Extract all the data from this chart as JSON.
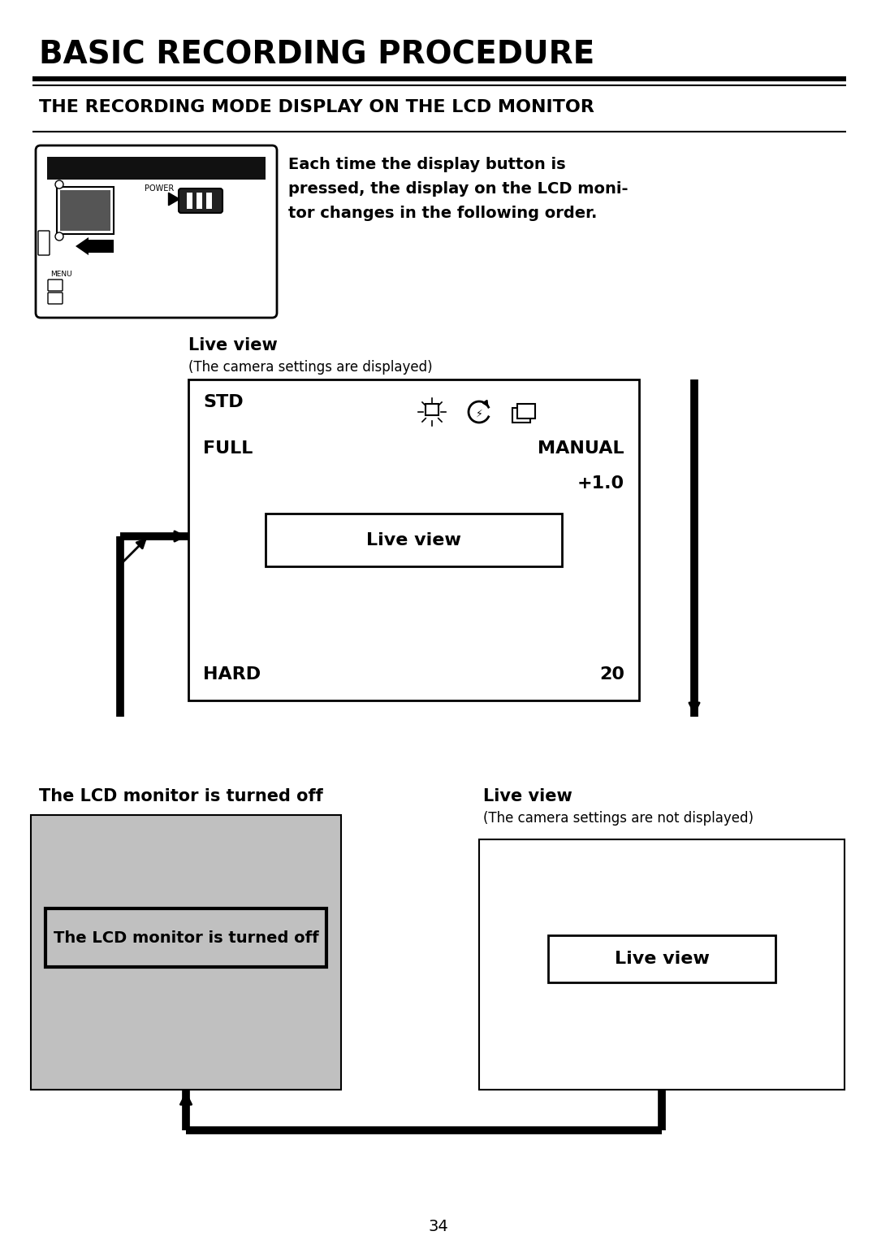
{
  "title": "BASIC RECORDING PROCEDURE",
  "subtitle": "THE RECORDING MODE DISPLAY ON THE LCD MONITOR",
  "desc_line1": "Each time the display button is",
  "desc_line2": "pressed, the display on the LCD moni-",
  "desc_line3": "tor changes in the following order.",
  "live_view_label": "Live view",
  "live_view_subtitle1": "(The camera settings are displayed)",
  "live_view_subtitle2": "(The camera settings are not displayed)",
  "lcd_off_label": "The LCD monitor is turned off",
  "page_number": "34",
  "lcd_std": "STD",
  "lcd_full": "FULL",
  "lcd_manual": "MANUAL",
  "lcd_plus10": "+1.0",
  "lcd_center": "Live view",
  "lcd_hard": "HARD",
  "lcd_20": "20",
  "colors": {
    "background": "#ffffff",
    "black": "#000000",
    "gray_fill": "#c0c0c0",
    "white": "#ffffff"
  }
}
